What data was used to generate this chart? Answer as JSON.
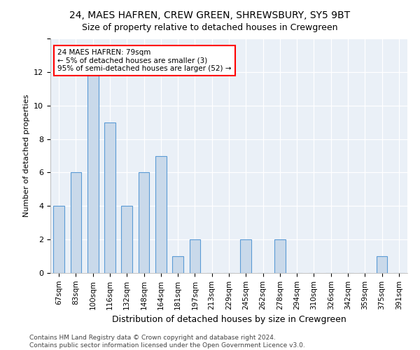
{
  "title1": "24, MAES HAFREN, CREW GREEN, SHREWSBURY, SY5 9BT",
  "title2": "Size of property relative to detached houses in Crewgreen",
  "xlabel": "Distribution of detached houses by size in Crewgreen",
  "ylabel": "Number of detached properties",
  "categories": [
    "67sqm",
    "83sqm",
    "100sqm",
    "116sqm",
    "132sqm",
    "148sqm",
    "164sqm",
    "181sqm",
    "197sqm",
    "213sqm",
    "229sqm",
    "245sqm",
    "262sqm",
    "278sqm",
    "294sqm",
    "310sqm",
    "326sqm",
    "342sqm",
    "359sqm",
    "375sqm",
    "391sqm"
  ],
  "values": [
    4,
    6,
    12,
    9,
    4,
    6,
    7,
    1,
    2,
    0,
    0,
    2,
    0,
    2,
    0,
    0,
    0,
    0,
    0,
    1,
    0
  ],
  "bar_color": "#c9d9ea",
  "bar_edge_color": "#5b9bd5",
  "annotation_text": "24 MAES HAFREN: 79sqm\n← 5% of detached houses are smaller (3)\n95% of semi-detached houses are larger (52) →",
  "annotation_box_color": "white",
  "annotation_box_edge_color": "red",
  "footer1": "Contains HM Land Registry data © Crown copyright and database right 2024.",
  "footer2": "Contains public sector information licensed under the Open Government Licence v3.0.",
  "ylim": [
    0,
    14
  ],
  "yticks": [
    0,
    2,
    4,
    6,
    8,
    10,
    12,
    14
  ],
  "bg_color": "#eaf0f7",
  "grid_color": "white",
  "title1_fontsize": 10,
  "title2_fontsize": 9,
  "ylabel_fontsize": 8,
  "xlabel_fontsize": 9,
  "tick_fontsize": 8,
  "annotation_fontsize": 7.5,
  "footer_fontsize": 6.5
}
